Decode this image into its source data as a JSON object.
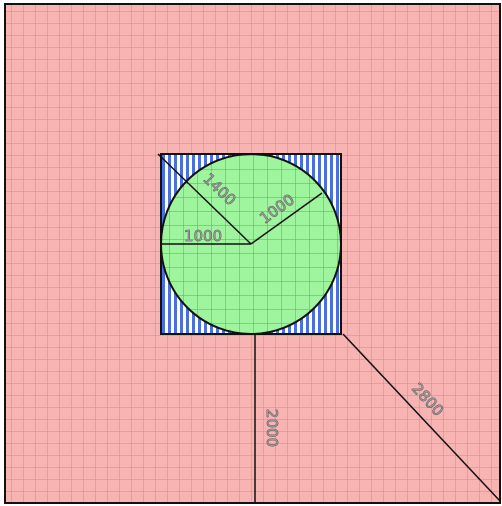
{
  "diagram": {
    "colors": {
      "outer_fill": "#f8b3b3",
      "outer_grid": "#e87f7f",
      "square_fill": "#ffffff",
      "square_stripe": "#4a6fe0",
      "circle_fill": "#9ef59e",
      "circle_grid": "#2ecc2e",
      "outline": "#111111"
    },
    "labels": {
      "square_half_width": "1000",
      "circle_radius": "1000",
      "square_half_diagonal": "1400",
      "outer_side_distance": "2000",
      "outer_corner_distance": "2800"
    }
  }
}
